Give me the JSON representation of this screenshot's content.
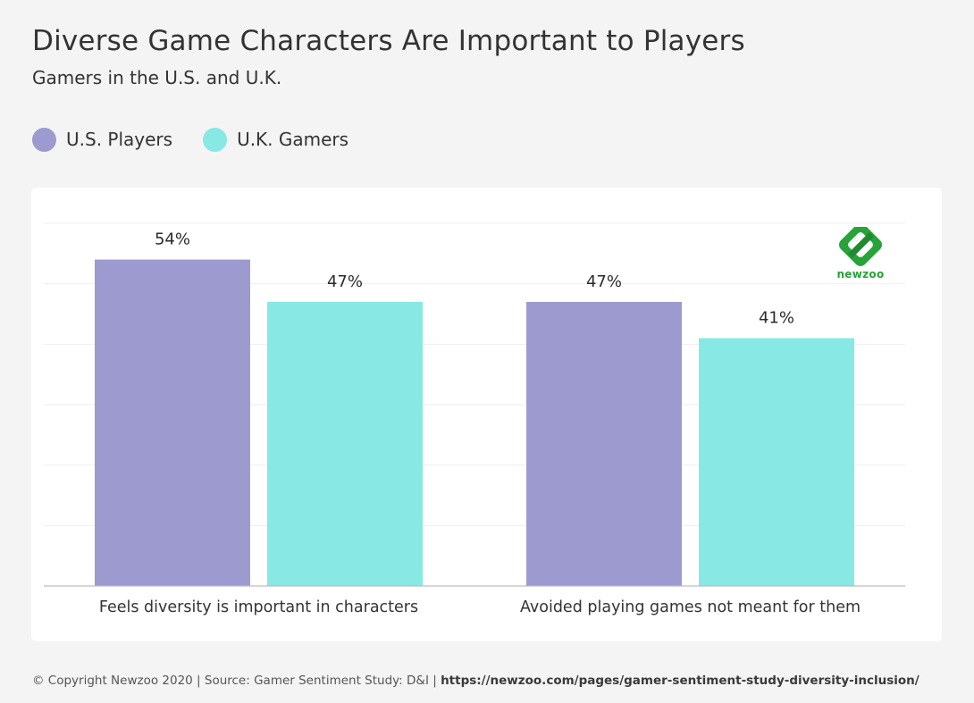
{
  "header": {
    "title": "Diverse Game Characters Are Important to Players",
    "subtitle": "Gamers in the U.S. and U.K."
  },
  "colors": {
    "us": "#9c9acf",
    "uk": "#87e8e4",
    "grid": "#eeeeee",
    "axis": "#bdbdbd",
    "logo_green": "#27a33a"
  },
  "logo": {
    "icon": "newzoo-logo-icon",
    "text": "newzoo"
  },
  "chart_data": {
    "type": "bar",
    "title": "Diverse Game Characters Are Important to Players",
    "subtitle": "Gamers in the U.S. and U.K.",
    "categories": [
      "Feels diversity is important in characters",
      "Avoided playing games not meant for them"
    ],
    "series": [
      {
        "name": "U.S. Players",
        "values": [
          54,
          47
        ],
        "labels": [
          "54%",
          "47%"
        ]
      },
      {
        "name": "U.K. Gamers",
        "values": [
          47,
          41
        ],
        "labels": [
          "47%",
          "41%"
        ]
      }
    ],
    "ylim": [
      0,
      60
    ],
    "grid": true,
    "legend": "top-left",
    "xlabel": "",
    "ylabel": ""
  },
  "footer": {
    "copyright": "© Copyright Newzoo 2020 | Source: Gamer Sentiment Study: D&I | ",
    "url": "https://newzoo.com/pages/gamer-sentiment-study-diversity-inclusion/"
  }
}
